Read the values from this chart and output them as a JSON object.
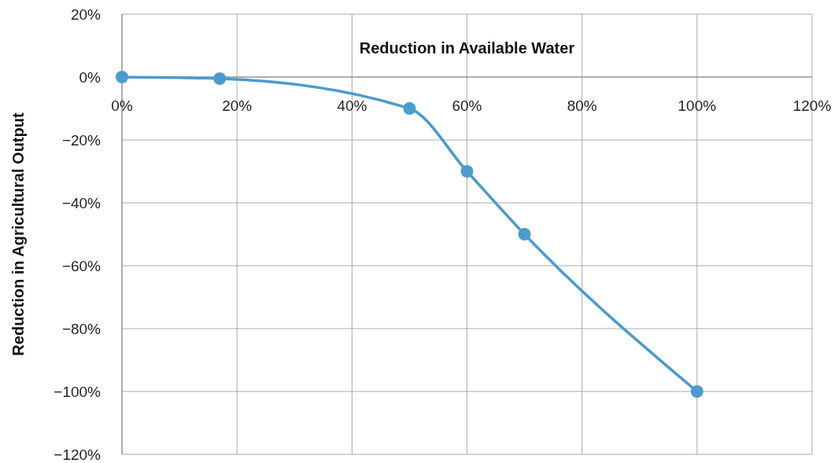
{
  "chart_data": {
    "type": "line",
    "xlabel": "Reduction in Available Water",
    "ylabel": "Reduction in Agricultural Output",
    "x": [
      0,
      17,
      50,
      60,
      70,
      100
    ],
    "series": [
      {
        "color": "#4a9ccc",
        "values": [
          0,
          -0.5,
          -10,
          -30,
          -50,
          -100
        ]
      }
    ],
    "xlim": [
      0,
      120
    ],
    "xticks": [
      {
        "value": 0,
        "label": "0%"
      },
      {
        "value": 20,
        "label": "20%"
      },
      {
        "value": 40,
        "label": "40%"
      },
      {
        "value": 60,
        "label": "60%"
      },
      {
        "value": 80,
        "label": "80%"
      },
      {
        "value": 100,
        "label": "100%"
      },
      {
        "value": 120,
        "label": "120%"
      }
    ],
    "ylim": [
      -120,
      20
    ],
    "yticks": [
      {
        "value": 20,
        "label": "20%"
      },
      {
        "value": 0,
        "label": "0%"
      },
      {
        "value": -20,
        "label": "−20%"
      },
      {
        "value": -40,
        "label": "−40%"
      },
      {
        "value": -60,
        "label": "−60%"
      },
      {
        "value": -80,
        "label": "−80%"
      },
      {
        "value": -100,
        "label": "−100%"
      },
      {
        "value": -120,
        "label": "−120%"
      }
    ],
    "grid": true,
    "marker": "circle",
    "line_style": "solid"
  }
}
